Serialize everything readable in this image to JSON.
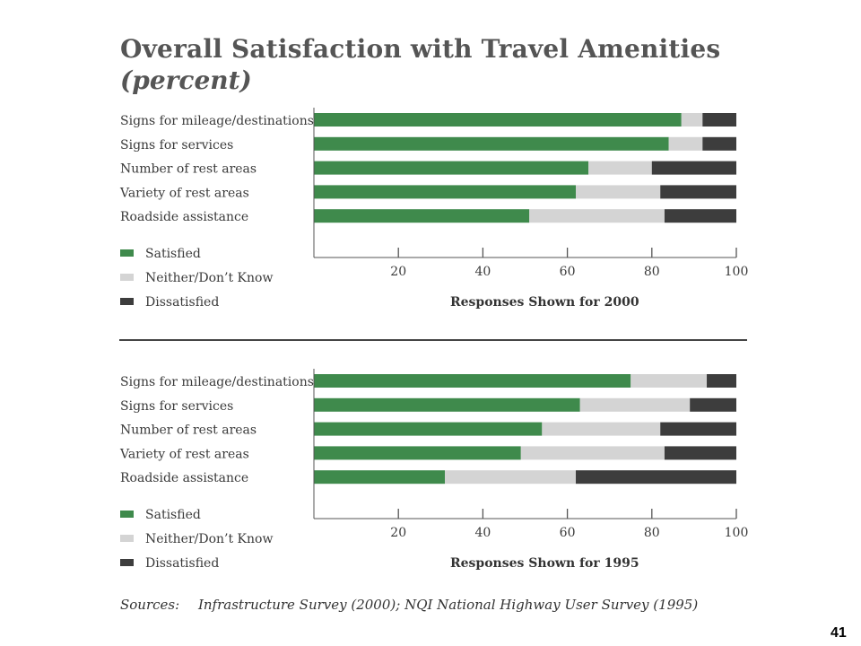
{
  "title": "Overall Satisfaction with Travel Amenities",
  "subtitle": "(percent)",
  "colors": {
    "satisfied": "#3f8a4c",
    "neither": "#d4d4d4",
    "dissatisfied": "#3d3d3d",
    "axis": "#555555"
  },
  "chart_data": [
    {
      "type": "bar",
      "orientation": "horizontal",
      "stacked": true,
      "caption": "Responses Shown for 2000",
      "categories": [
        "Signs for mileage/destinations",
        "Signs for services",
        "Number of rest areas",
        "Variety of rest areas",
        "Roadside assistance"
      ],
      "series": [
        {
          "name": "Satisfied",
          "values": [
            87,
            84,
            65,
            62,
            51
          ]
        },
        {
          "name": "Neither/Don’t Know",
          "values": [
            5,
            8,
            15,
            20,
            32
          ]
        },
        {
          "name": "Dissatisfied",
          "values": [
            8,
            8,
            20,
            18,
            17
          ]
        }
      ],
      "xticks": [
        20,
        40,
        60,
        80,
        100
      ],
      "xlim": [
        0,
        100
      ],
      "legend": "bottom-left"
    },
    {
      "type": "bar",
      "orientation": "horizontal",
      "stacked": true,
      "caption": "Responses Shown for 1995",
      "categories": [
        "Signs for mileage/destinations",
        "Signs for services",
        "Number of rest areas",
        "Variety of rest areas",
        "Roadside assistance"
      ],
      "series": [
        {
          "name": "Satisfied",
          "values": [
            75,
            63,
            54,
            49,
            31
          ]
        },
        {
          "name": "Neither/Don’t Know",
          "values": [
            18,
            26,
            28,
            34,
            31
          ]
        },
        {
          "name": "Dissatisfied",
          "values": [
            7,
            11,
            18,
            17,
            38
          ]
        }
      ],
      "xticks": [
        20,
        40,
        60,
        80,
        100
      ],
      "xlim": [
        0,
        100
      ],
      "legend": "bottom-left"
    }
  ],
  "sources": {
    "label": "Sources:",
    "text": "Infrastructure Survey (2000); NQI National Highway User Survey (1995)"
  },
  "page_number": "41"
}
